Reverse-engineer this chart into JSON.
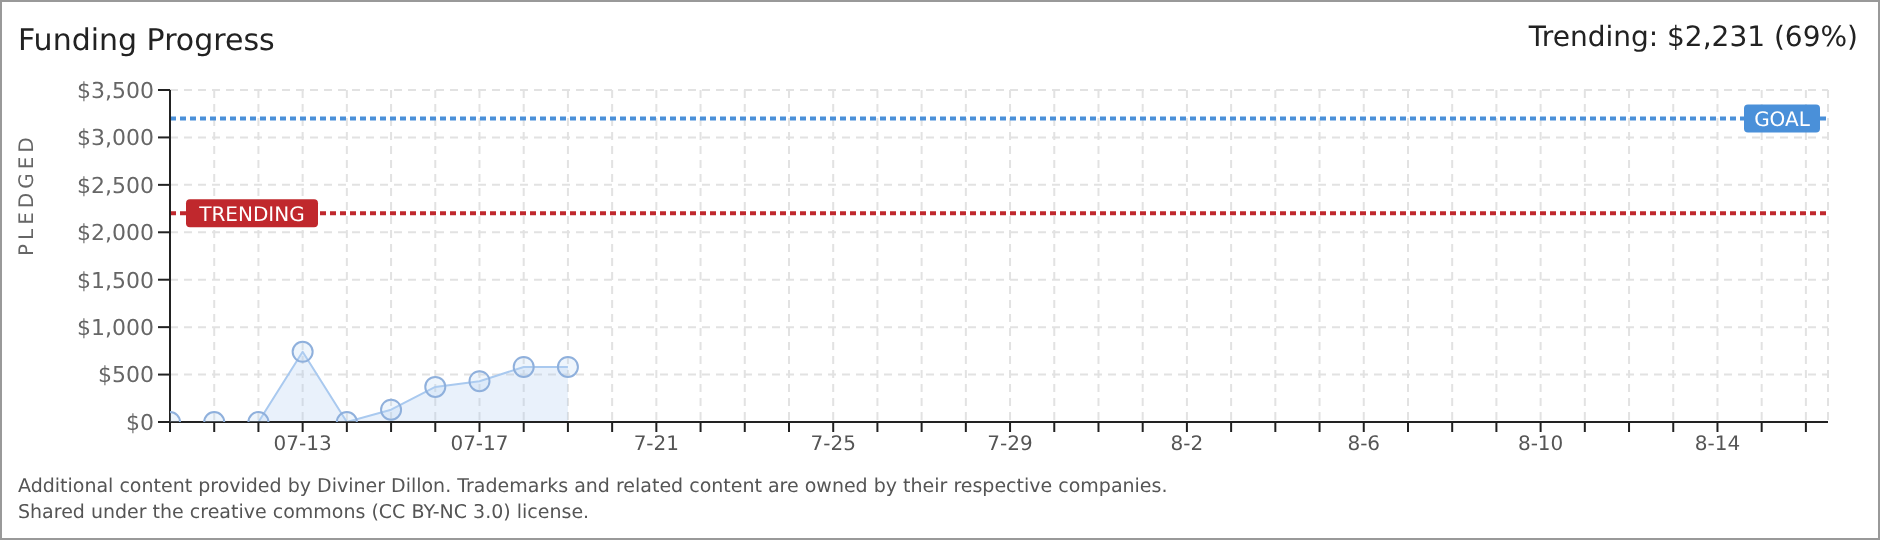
{
  "chart_data": {
    "type": "area",
    "title": "Funding Progress",
    "ylabel": "PLEDGED",
    "categories": [
      null,
      null,
      null,
      "07-13",
      null,
      null,
      null,
      "07-17",
      null,
      null,
      null,
      "7-21",
      null,
      null,
      null,
      "7-25",
      null,
      null,
      null,
      "7-29",
      null,
      null,
      null,
      "8-2",
      null,
      null,
      null,
      "8-6",
      null,
      null,
      null,
      "8-10",
      null,
      null,
      null,
      "8-14",
      null,
      null
    ],
    "series": [
      {
        "color": "#a9c9ef",
        "values": [
          0,
          0,
          0,
          740,
          0,
          130,
          370,
          430,
          580,
          580,
          null,
          null,
          null,
          null,
          null,
          null,
          null,
          null,
          null,
          null,
          null,
          null,
          null,
          null,
          null,
          null,
          null,
          null,
          null,
          null,
          null,
          null,
          null,
          null,
          null,
          null,
          null,
          null
        ]
      }
    ],
    "ylim": [
      0,
      3500
    ],
    "yticks": [
      {
        "value": 0,
        "label": "$0"
      },
      {
        "value": 500,
        "label": "$500"
      },
      {
        "value": 1000,
        "label": "$1,000"
      },
      {
        "value": 1500,
        "label": "$1,500"
      },
      {
        "value": 2000,
        "label": "$2,000"
      },
      {
        "value": 2500,
        "label": "$2,500"
      },
      {
        "value": 3000,
        "label": "$3,000"
      },
      {
        "value": 3500,
        "label": "$3,500"
      }
    ],
    "ref_lines": [
      {
        "axis": "y",
        "value": 3200,
        "label": "GOAL",
        "color": "#4a90d9",
        "line_style": "dotted"
      },
      {
        "axis": "y",
        "value": 2200,
        "label": "TRENDING",
        "color": "#c0282d",
        "line_style": "dotted"
      }
    ],
    "annotations": [
      "Trending:  $2,231 (69%)",
      "Additional content provided by Diviner Dillon. Trademarks and related content are owned by their respective companies.",
      "Shared under the creative commons (CC BY-NC 3.0) license."
    ],
    "grid": true,
    "marker": "circle",
    "legend": false
  }
}
